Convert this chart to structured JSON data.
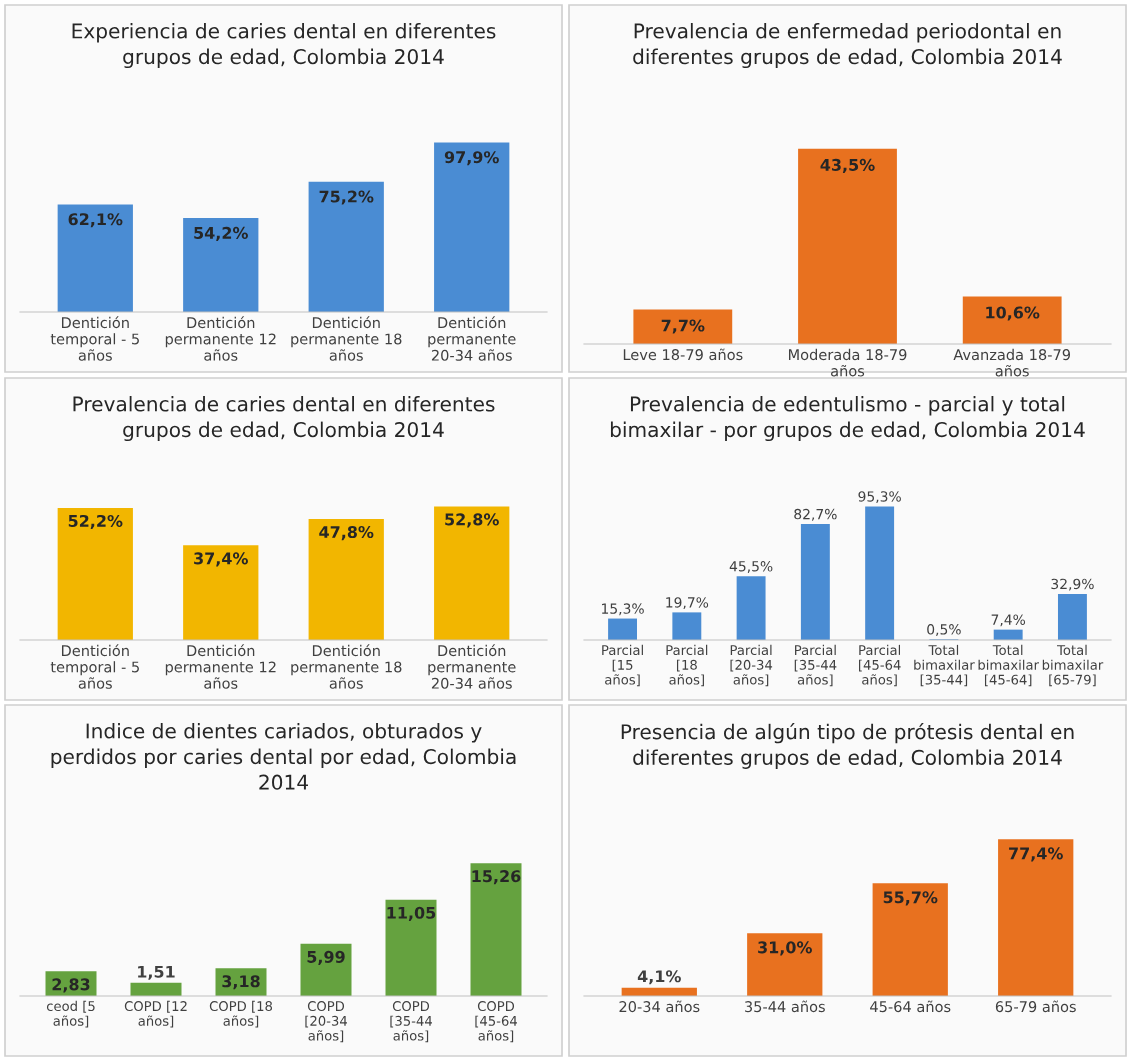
{
  "chart_data": [
    {
      "type": "bar",
      "title": "Experiencia de caries dental en diferentes grupos de edad, Colombia 2014",
      "categories": [
        "Dentición temporal - 5 años",
        "Dentición permanente 12 años",
        "Dentición permanente 18 años",
        "Dentición permanente 20-34 años"
      ],
      "values": [
        62.1,
        54.2,
        75.2,
        97.9
      ],
      "value_labels": [
        "62,1%",
        "54,2%",
        "75,2%",
        "97,9%"
      ],
      "color": "#4a8cd3"
    },
    {
      "type": "bar",
      "title": "Prevalencia de enfermedad periodontal en diferentes grupos de edad, Colombia 2014",
      "categories": [
        "Leve 18-79 años",
        "Moderada 18-79 años",
        "Avanzada 18-79 años"
      ],
      "values": [
        7.7,
        43.5,
        10.6
      ],
      "value_labels": [
        "7,7%",
        "43,5%",
        "10,6%"
      ],
      "color": "#e8711f"
    },
    {
      "type": "bar",
      "title": "Prevalencia de caries dental en diferentes grupos de edad, Colombia 2014",
      "categories": [
        "Dentición temporal - 5 años",
        "Dentición permanente 12 años",
        "Dentición permanente 18 años",
        "Dentición permanente 20-34 años"
      ],
      "values": [
        52.2,
        37.4,
        47.8,
        52.8
      ],
      "value_labels": [
        "52,2%",
        "37,4%",
        "47,8%",
        "52,8%"
      ],
      "color": "#f2b600"
    },
    {
      "type": "bar",
      "title": "Prevalencia de edentulismo - parcial y total bimaxilar - por grupos de edad, Colombia 2014",
      "categories": [
        "Parcial [15 años]",
        "Parcial [18 años]",
        "Parcial [20-34 años]",
        "Parcial [35-44 años]",
        "Parcial [45-64 años]",
        "Total bimaxilar [35-44]",
        "Total bimaxilar [45-64]",
        "Total bimaxilar [65-79]"
      ],
      "values": [
        15.3,
        19.7,
        45.5,
        82.7,
        95.3,
        0.5,
        7.4,
        32.9
      ],
      "value_labels": [
        "15,3%",
        "19,7%",
        "45,5%",
        "82,7%",
        "95,3%",
        "0,5%",
        "7,4%",
        "32,9%"
      ],
      "color": "#4a8cd3"
    },
    {
      "type": "bar",
      "title": "Indice de dientes cariados, obturados y perdidos por caries dental por edad, Colombia 2014",
      "categories": [
        "ceod [5 años]",
        "COPD [12 años]",
        "COPD [18 años]",
        "COPD [20-34 años]",
        "COPD [35-44 años]",
        "COPD [45-64 años]"
      ],
      "values": [
        2.83,
        1.51,
        3.18,
        5.99,
        11.05,
        15.26
      ],
      "value_labels": [
        "2,83",
        "1,51",
        "3,18",
        "5,99",
        "11,05",
        "15,26"
      ],
      "color": "#65a23f"
    },
    {
      "type": "bar",
      "title": "Presencia de algún tipo de prótesis dental en diferentes grupos de edad, Colombia 2014",
      "categories": [
        "20-34 años",
        "35-44 años",
        "45-64 años",
        "65-79 años"
      ],
      "values": [
        4.1,
        31.0,
        55.7,
        77.4
      ],
      "value_labels": [
        "4,1%",
        "31,0%",
        "55,7%",
        "77,4%"
      ],
      "color": "#e8711f"
    }
  ]
}
